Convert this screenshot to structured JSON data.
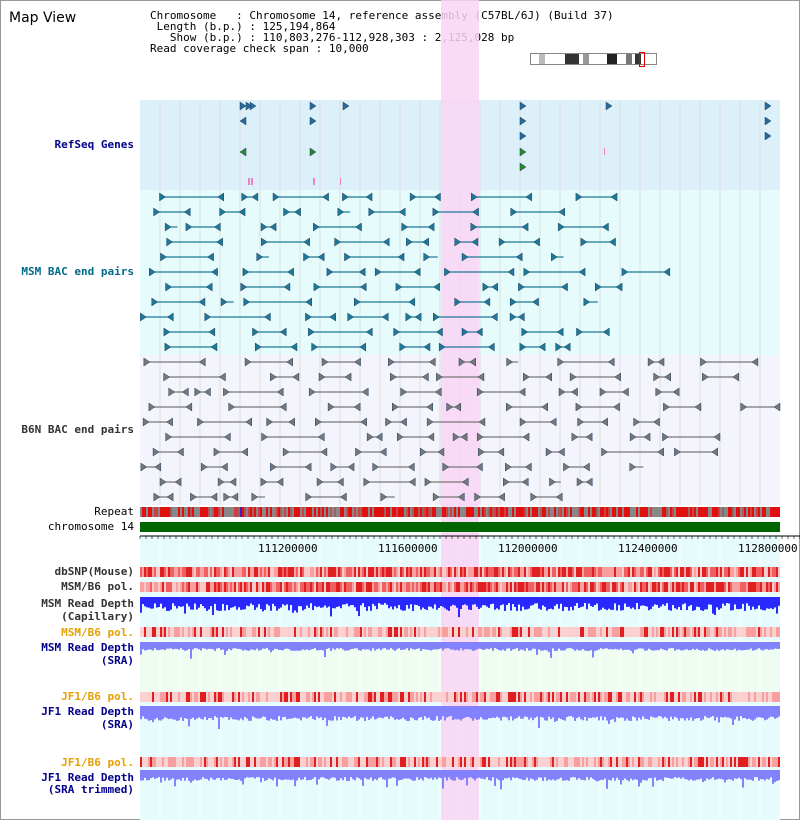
{
  "page": {
    "title": "Map View"
  },
  "info": {
    "chromosome_label": "Chromosome",
    "chromosome_value": "Chromosome 14, reference assembly (C57BL/6J) (Build 37)",
    "length_label": "Length (b.p.)",
    "length_value": "125,194,864",
    "show_label": "Show (b.p.)",
    "show_value": "110,803,276-112,928,303 : 2,125,028 bp",
    "coverage_label": "Read coverage check span",
    "coverage_value": "10,000"
  },
  "tracks": {
    "refseq": "RefSeq Genes",
    "msm_bac": "MSM BAC end pairs",
    "b6n_bac": "B6N BAC end pairs",
    "repeat": "Repeat",
    "chromosome": "chromosome 14",
    "dbsnp": "dbSNP(Mouse)",
    "msm_b6_pol": "MSM/B6 pol.",
    "msm_read_depth": "MSM Read Depth",
    "capillary": "(Capillary)",
    "msm_b6_pol2": "MSM/B6 pol.",
    "msm_read_depth_sra": "MSM Read Depth",
    "sra": "(SRA)",
    "jf1_b6_pol": "JF1/B6 pol.",
    "jf1_read_depth": "JF1 Read Depth",
    "jf1_sra": "(SRA)",
    "jf1_b6_pol2": "JF1/B6 pol.",
    "jf1_read_depth2": "JF1 Read Depth",
    "sra_trimmed": "(SRA trimmed)"
  },
  "axis": {
    "ticks": [
      "111200000",
      "111600000",
      "112000000",
      "112400000",
      "112800000"
    ]
  },
  "colors": {
    "refseq_bg": "#dcf0fa",
    "pale_cyan": "#e6fcfc",
    "pale_lav": "#f4f4fc",
    "highlight": "#f9d5f5",
    "bac_teal": "#1e7896",
    "bac_gray": "#777777",
    "chrom_green": "#006400",
    "depth_blue": "#2828ff",
    "depth_lavender": "#8282ff"
  }
}
